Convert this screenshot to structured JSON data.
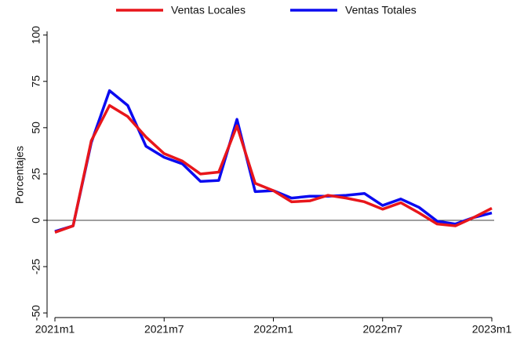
{
  "chart_data": {
    "type": "line",
    "y_label": "Porcentajes",
    "categories": [
      "2021m1",
      null,
      null,
      null,
      null,
      null,
      "2021m7",
      null,
      null,
      null,
      null,
      null,
      "2022m1",
      null,
      null,
      null,
      null,
      null,
      "2022m7",
      null,
      null,
      null,
      null,
      null,
      "2023m1"
    ],
    "series": [
      {
        "name": "Ventas Locales",
        "color": "#e8161b",
        "values": [
          -6.5,
          -3,
          43,
          62,
          56,
          45,
          36,
          32,
          25,
          26,
          51,
          20,
          16,
          10,
          10.5,
          13.5,
          12,
          10,
          6,
          9.5,
          4,
          -2,
          -3,
          1.5,
          6.5
        ]
      },
      {
        "name": "Ventas Totales",
        "color": "#0b0bf0",
        "values": [
          -6,
          -3,
          42,
          70,
          62,
          40,
          34,
          30.5,
          21,
          21.5,
          54.5,
          15.5,
          16,
          12,
          13,
          13,
          13.5,
          14.5,
          8,
          11.5,
          7,
          -0.5,
          -2,
          1.5,
          4
        ]
      }
    ],
    "ylim": [
      -52.5,
      102
    ],
    "yticks": [
      -50,
      -25,
      0,
      25,
      50,
      75,
      100
    ],
    "zero_line": true,
    "legend": "top"
  }
}
